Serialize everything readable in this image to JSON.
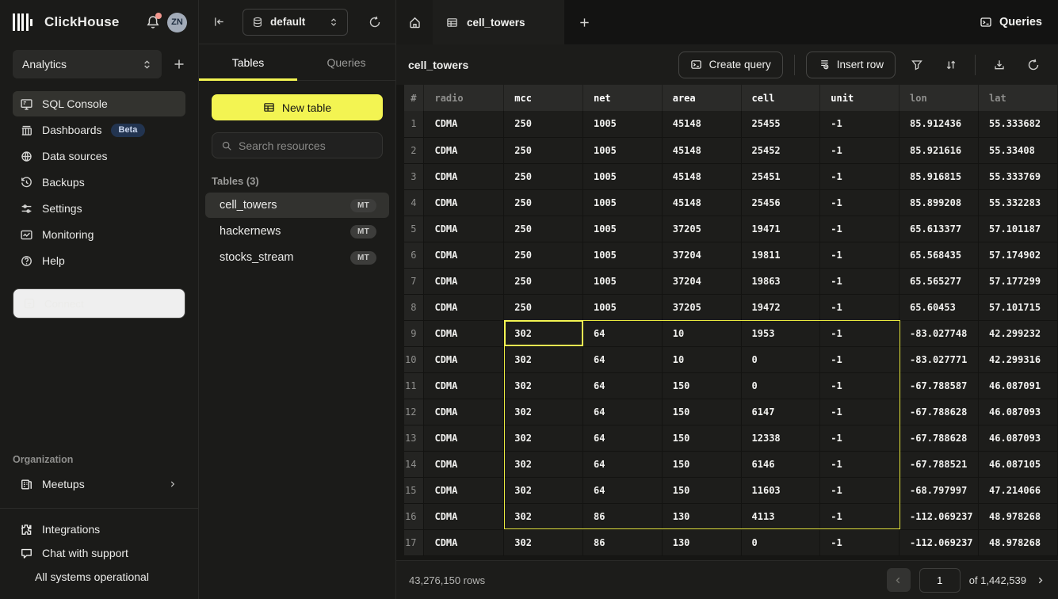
{
  "colors": {
    "accent": "#f3f452",
    "selection_border": "#e9e93f",
    "beta_badge_bg": "#223450",
    "status_green": "#72d98a",
    "notification_dot": "#f2978e",
    "avatar_bg": "#a2abb8"
  },
  "sidebar": {
    "brand": "ClickHouse",
    "avatar_initials": "ZN",
    "workspace_selector": {
      "value": "Analytics"
    },
    "nav": [
      {
        "label": "SQL Console",
        "icon": "console-icon",
        "active": true
      },
      {
        "label": "Dashboards",
        "icon": "dashboards-icon",
        "badge": "Beta"
      },
      {
        "label": "Data sources",
        "icon": "data-sources-icon"
      },
      {
        "label": "Backups",
        "icon": "backups-icon"
      },
      {
        "label": "Settings",
        "icon": "settings-icon"
      },
      {
        "label": "Monitoring",
        "icon": "monitoring-icon"
      },
      {
        "label": "Help",
        "icon": "help-icon"
      }
    ],
    "connect_label": "Connect",
    "organization": {
      "label": "Organization",
      "items": [
        {
          "label": "Meetups",
          "icon": "meetups-icon"
        }
      ]
    },
    "footer_items": [
      {
        "label": "Integrations",
        "icon": "integrations-icon"
      },
      {
        "label": "Chat with support",
        "icon": "chat-icon"
      },
      {
        "label": "All systems operational",
        "icon": "status-dot"
      }
    ]
  },
  "explorer": {
    "database_selector": "default",
    "tabs": [
      {
        "label": "Tables",
        "active": true
      },
      {
        "label": "Queries",
        "active": false
      }
    ],
    "new_table_label": "New table",
    "search_placeholder": "Search resources",
    "section_label": "Tables (3)",
    "tables": [
      {
        "name": "cell_towers",
        "badge": "MT",
        "selected": true
      },
      {
        "name": "hackernews",
        "badge": "MT",
        "selected": false
      },
      {
        "name": "stocks_stream",
        "badge": "MT",
        "selected": false
      }
    ]
  },
  "main": {
    "active_tab": "cell_towers",
    "queries_button_label": "Queries",
    "title": "cell_towers",
    "create_query_label": "Create query",
    "insert_row_label": "Insert row",
    "grid": {
      "columns": [
        "#",
        "radio",
        "mcc",
        "net",
        "area",
        "cell",
        "unit",
        "lon",
        "lat"
      ],
      "highlighted_columns": [
        "mcc",
        "net",
        "area",
        "cell",
        "unit"
      ],
      "rows": [
        [
          "1",
          "CDMA",
          "250",
          "1005",
          "45148",
          "25455",
          "-1",
          "85.912436",
          "55.333682"
        ],
        [
          "2",
          "CDMA",
          "250",
          "1005",
          "45148",
          "25452",
          "-1",
          "85.921616",
          "55.33408"
        ],
        [
          "3",
          "CDMA",
          "250",
          "1005",
          "45148",
          "25451",
          "-1",
          "85.916815",
          "55.333769"
        ],
        [
          "4",
          "CDMA",
          "250",
          "1005",
          "45148",
          "25456",
          "-1",
          "85.899208",
          "55.332283"
        ],
        [
          "5",
          "CDMA",
          "250",
          "1005",
          "37205",
          "19471",
          "-1",
          "65.613377",
          "57.101187"
        ],
        [
          "6",
          "CDMA",
          "250",
          "1005",
          "37204",
          "19811",
          "-1",
          "65.568435",
          "57.174902"
        ],
        [
          "7",
          "CDMA",
          "250",
          "1005",
          "37204",
          "19863",
          "-1",
          "65.565277",
          "57.177299"
        ],
        [
          "8",
          "CDMA",
          "250",
          "1005",
          "37205",
          "19472",
          "-1",
          "65.60453",
          "57.101715"
        ],
        [
          "9",
          "CDMA",
          "302",
          "64",
          "10",
          "1953",
          "-1",
          "-83.027748",
          "42.299232"
        ],
        [
          "10",
          "CDMA",
          "302",
          "64",
          "10",
          "0",
          "-1",
          "-83.027771",
          "42.299316"
        ],
        [
          "11",
          "CDMA",
          "302",
          "64",
          "150",
          "0",
          "-1",
          "-67.788587",
          "46.087091"
        ],
        [
          "12",
          "CDMA",
          "302",
          "64",
          "150",
          "6147",
          "-1",
          "-67.788628",
          "46.087093"
        ],
        [
          "13",
          "CDMA",
          "302",
          "64",
          "150",
          "12338",
          "-1",
          "-67.788628",
          "46.087093"
        ],
        [
          "14",
          "CDMA",
          "302",
          "64",
          "150",
          "6146",
          "-1",
          "-67.788521",
          "46.087105"
        ],
        [
          "15",
          "CDMA",
          "302",
          "64",
          "150",
          "11603",
          "-1",
          "-68.797997",
          "47.214066"
        ],
        [
          "16",
          "CDMA",
          "302",
          "86",
          "130",
          "4113",
          "-1",
          "-112.069237",
          "48.978268"
        ],
        [
          "17",
          "CDMA",
          "302",
          "86",
          "130",
          "0",
          "-1",
          "-112.069237",
          "48.978268"
        ]
      ],
      "selection": {
        "first_row": 9,
        "last_row": 16,
        "first_col": "mcc",
        "last_col": "unit",
        "active_cell": {
          "row": 9,
          "col": "mcc",
          "value": "302"
        }
      }
    },
    "footer": {
      "row_count": "43,276,150 rows",
      "page_value": "1",
      "page_total": "of 1,442,539"
    }
  }
}
